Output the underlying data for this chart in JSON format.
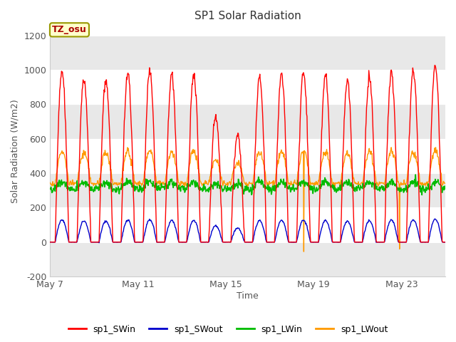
{
  "title": "SP1 Solar Radiation",
  "ylabel": "Solar Radiation (W/m2)",
  "xlabel": "Time",
  "ylim": [
    -200,
    1260
  ],
  "yticks": [
    -200,
    0,
    200,
    400,
    600,
    800,
    1000,
    1200
  ],
  "xtick_labels": [
    "May 7",
    "May 11",
    "May 15",
    "May 19",
    "May 23"
  ],
  "xtick_positions": [
    0,
    4,
    8,
    12,
    16
  ],
  "annotation_text": "TZ_osu",
  "annotation_bbox_fc": "#ffffcc",
  "annotation_bbox_ec": "#999900",
  "legend_entries": [
    "sp1_SWin",
    "sp1_SWout",
    "sp1_LWin",
    "sp1_LWout"
  ],
  "line_colors": [
    "#ff0000",
    "#0000cc",
    "#00bb00",
    "#ff9900"
  ],
  "plot_bg_color": "#ffffff",
  "band_color": "#e8e8e8",
  "n_days": 18,
  "samples_per_day": 48,
  "title_fontsize": 11,
  "label_fontsize": 9,
  "tick_fontsize": 9,
  "figsize": [
    6.4,
    4.8
  ],
  "dpi": 100
}
